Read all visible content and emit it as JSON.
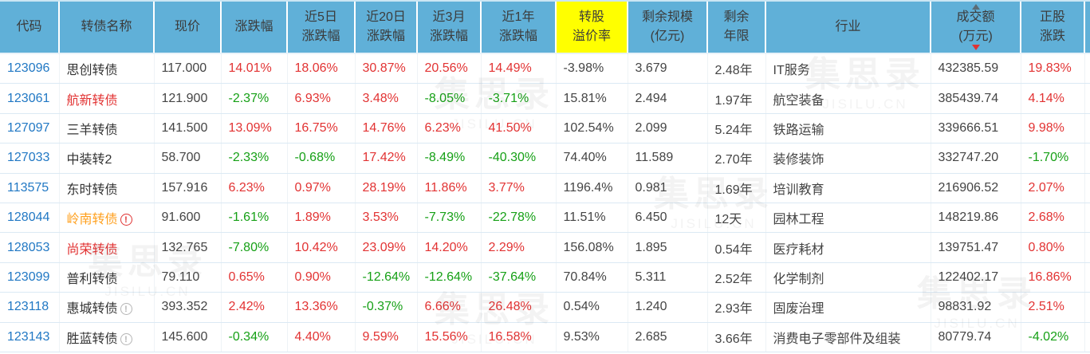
{
  "colors": {
    "header_bg": "#60b0d8",
    "highlight_yellow": "#ffff00",
    "up_red": "#e23333",
    "down_green": "#16a016",
    "code_blue": "#2178c4",
    "name_default": "#333333",
    "name_red": "#e23333",
    "name_orange": "#ffa01e"
  },
  "icons": {
    "warning": "!"
  },
  "watermark": {
    "text": "集思录",
    "subtext": "JISILU.CN"
  },
  "sort": {
    "column": "成交额(万元)",
    "direction": "desc"
  },
  "table": {
    "headers": [
      {
        "id": "code",
        "line1": "代码",
        "line2": ""
      },
      {
        "id": "name",
        "line1": "转债名称",
        "line2": ""
      },
      {
        "id": "price",
        "line1": "现价",
        "line2": ""
      },
      {
        "id": "change",
        "line1": "涨跌幅",
        "line2": ""
      },
      {
        "id": "change-5d",
        "line1": "近5日",
        "line2": "涨跌幅"
      },
      {
        "id": "change-20d",
        "line1": "近20日",
        "line2": "涨跌幅"
      },
      {
        "id": "change-3m",
        "line1": "近3月",
        "line2": "涨跌幅"
      },
      {
        "id": "change-1y",
        "line1": "近1年",
        "line2": "涨跌幅"
      },
      {
        "id": "premium",
        "line1": "转股",
        "line2": "溢价率",
        "highlight": true
      },
      {
        "id": "scale",
        "line1": "剩余规模",
        "line2": "(亿元)"
      },
      {
        "id": "years",
        "line1": "剩余",
        "line2": "年限"
      },
      {
        "id": "industry",
        "line1": "行业",
        "line2": ""
      },
      {
        "id": "turnover",
        "line1": "成交额",
        "line2": "(万元)",
        "sort": "desc"
      },
      {
        "id": "stock-change",
        "line1": "正股",
        "line2": "涨跌"
      }
    ],
    "rows": [
      {
        "code": "123096",
        "name": "思创转债",
        "name_color": "default",
        "warn": null,
        "values": [
          {
            "t": "117.000",
            "c": "flat"
          },
          {
            "t": "14.01%",
            "c": "up"
          },
          {
            "t": "18.06%",
            "c": "up"
          },
          {
            "t": "30.87%",
            "c": "up"
          },
          {
            "t": "20.56%",
            "c": "up"
          },
          {
            "t": "14.49%",
            "c": "up"
          },
          {
            "t": "-3.98%",
            "c": "flat"
          },
          {
            "t": "3.679",
            "c": "flat"
          },
          {
            "t": "2.48年",
            "c": "flat"
          },
          {
            "t": "IT服务",
            "c": "flat"
          },
          {
            "t": "432385.59",
            "c": "flat"
          },
          {
            "t": "19.83%",
            "c": "up"
          }
        ]
      },
      {
        "code": "123061",
        "name": "航新转债",
        "name_color": "red",
        "warn": null,
        "values": [
          {
            "t": "121.900",
            "c": "flat"
          },
          {
            "t": "-2.37%",
            "c": "down"
          },
          {
            "t": "6.93%",
            "c": "up"
          },
          {
            "t": "3.48%",
            "c": "up"
          },
          {
            "t": "-8.05%",
            "c": "down"
          },
          {
            "t": "-3.71%",
            "c": "down"
          },
          {
            "t": "15.81%",
            "c": "flat"
          },
          {
            "t": "2.494",
            "c": "flat"
          },
          {
            "t": "1.97年",
            "c": "flat"
          },
          {
            "t": "航空装备",
            "c": "flat"
          },
          {
            "t": "385439.74",
            "c": "flat"
          },
          {
            "t": "4.14%",
            "c": "up"
          }
        ]
      },
      {
        "code": "127097",
        "name": "三羊转债",
        "name_color": "default",
        "warn": null,
        "values": [
          {
            "t": "141.500",
            "c": "flat"
          },
          {
            "t": "13.09%",
            "c": "up"
          },
          {
            "t": "16.75%",
            "c": "up"
          },
          {
            "t": "14.76%",
            "c": "up"
          },
          {
            "t": "6.23%",
            "c": "up"
          },
          {
            "t": "41.50%",
            "c": "up"
          },
          {
            "t": "102.54%",
            "c": "flat"
          },
          {
            "t": "2.099",
            "c": "flat"
          },
          {
            "t": "5.24年",
            "c": "flat"
          },
          {
            "t": "铁路运输",
            "c": "flat"
          },
          {
            "t": "339666.51",
            "c": "flat"
          },
          {
            "t": "9.98%",
            "c": "up"
          }
        ]
      },
      {
        "code": "127033",
        "name": "中装转2",
        "name_color": "default",
        "warn": null,
        "values": [
          {
            "t": "58.700",
            "c": "flat"
          },
          {
            "t": "-2.33%",
            "c": "down"
          },
          {
            "t": "-0.68%",
            "c": "down"
          },
          {
            "t": "17.42%",
            "c": "up"
          },
          {
            "t": "-8.49%",
            "c": "down"
          },
          {
            "t": "-40.30%",
            "c": "down"
          },
          {
            "t": "74.40%",
            "c": "flat"
          },
          {
            "t": "11.589",
            "c": "flat"
          },
          {
            "t": "2.70年",
            "c": "flat"
          },
          {
            "t": "装修装饰",
            "c": "flat"
          },
          {
            "t": "332747.20",
            "c": "flat"
          },
          {
            "t": "-1.70%",
            "c": "down"
          }
        ]
      },
      {
        "code": "113575",
        "name": "东时转债",
        "name_color": "default",
        "warn": null,
        "values": [
          {
            "t": "157.916",
            "c": "flat"
          },
          {
            "t": "6.23%",
            "c": "up"
          },
          {
            "t": "0.97%",
            "c": "up"
          },
          {
            "t": "28.19%",
            "c": "up"
          },
          {
            "t": "11.86%",
            "c": "up"
          },
          {
            "t": "3.77%",
            "c": "up"
          },
          {
            "t": "1196.4%",
            "c": "flat"
          },
          {
            "t": "0.981",
            "c": "flat"
          },
          {
            "t": "1.69年",
            "c": "flat"
          },
          {
            "t": "培训教育",
            "c": "flat"
          },
          {
            "t": "216906.52",
            "c": "flat"
          },
          {
            "t": "2.07%",
            "c": "up"
          }
        ]
      },
      {
        "code": "128044",
        "name": "岭南转债",
        "name_color": "orange",
        "warn": "red",
        "values": [
          {
            "t": "91.600",
            "c": "flat"
          },
          {
            "t": "-1.61%",
            "c": "down"
          },
          {
            "t": "1.89%",
            "c": "up"
          },
          {
            "t": "3.53%",
            "c": "up"
          },
          {
            "t": "-7.73%",
            "c": "down"
          },
          {
            "t": "-22.78%",
            "c": "down"
          },
          {
            "t": "11.51%",
            "c": "flat"
          },
          {
            "t": "6.450",
            "c": "flat"
          },
          {
            "t": "12天",
            "c": "flat"
          },
          {
            "t": "园林工程",
            "c": "flat"
          },
          {
            "t": "148219.86",
            "c": "flat"
          },
          {
            "t": "2.68%",
            "c": "up"
          }
        ]
      },
      {
        "code": "128053",
        "name": "尚荣转债",
        "name_color": "red",
        "warn": null,
        "values": [
          {
            "t": "132.765",
            "c": "flat"
          },
          {
            "t": "-7.80%",
            "c": "down"
          },
          {
            "t": "10.42%",
            "c": "up"
          },
          {
            "t": "23.09%",
            "c": "up"
          },
          {
            "t": "14.20%",
            "c": "up"
          },
          {
            "t": "2.29%",
            "c": "up"
          },
          {
            "t": "156.08%",
            "c": "flat"
          },
          {
            "t": "1.895",
            "c": "flat"
          },
          {
            "t": "0.54年",
            "c": "flat"
          },
          {
            "t": "医疗耗材",
            "c": "flat"
          },
          {
            "t": "139751.47",
            "c": "flat"
          },
          {
            "t": "0.80%",
            "c": "up"
          }
        ]
      },
      {
        "code": "123099",
        "name": "普利转债",
        "name_color": "default",
        "warn": null,
        "values": [
          {
            "t": "79.110",
            "c": "flat"
          },
          {
            "t": "0.65%",
            "c": "up"
          },
          {
            "t": "0.90%",
            "c": "up"
          },
          {
            "t": "-12.64%",
            "c": "down"
          },
          {
            "t": "-12.64%",
            "c": "down"
          },
          {
            "t": "-37.64%",
            "c": "down"
          },
          {
            "t": "70.84%",
            "c": "flat"
          },
          {
            "t": "5.311",
            "c": "flat"
          },
          {
            "t": "2.52年",
            "c": "flat"
          },
          {
            "t": "化学制剂",
            "c": "flat"
          },
          {
            "t": "122402.17",
            "c": "flat"
          },
          {
            "t": "16.86%",
            "c": "up"
          }
        ]
      },
      {
        "code": "123118",
        "name": "惠城转债",
        "name_color": "default",
        "warn": "gray",
        "values": [
          {
            "t": "393.352",
            "c": "flat"
          },
          {
            "t": "2.42%",
            "c": "up"
          },
          {
            "t": "13.36%",
            "c": "up"
          },
          {
            "t": "-0.37%",
            "c": "down"
          },
          {
            "t": "6.66%",
            "c": "up"
          },
          {
            "t": "26.48%",
            "c": "up"
          },
          {
            "t": "0.54%",
            "c": "flat"
          },
          {
            "t": "1.240",
            "c": "flat"
          },
          {
            "t": "2.93年",
            "c": "flat"
          },
          {
            "t": "固废治理",
            "c": "flat"
          },
          {
            "t": "98831.92",
            "c": "flat"
          },
          {
            "t": "2.51%",
            "c": "up"
          }
        ]
      },
      {
        "code": "123143",
        "name": "胜蓝转债",
        "name_color": "default",
        "warn": "gray",
        "values": [
          {
            "t": "145.600",
            "c": "flat"
          },
          {
            "t": "-0.34%",
            "c": "down"
          },
          {
            "t": "4.40%",
            "c": "up"
          },
          {
            "t": "9.59%",
            "c": "up"
          },
          {
            "t": "15.56%",
            "c": "up"
          },
          {
            "t": "16.58%",
            "c": "up"
          },
          {
            "t": "9.53%",
            "c": "flat"
          },
          {
            "t": "2.685",
            "c": "flat"
          },
          {
            "t": "3.66年",
            "c": "flat"
          },
          {
            "t": "消费电子零部件及组装",
            "c": "flat"
          },
          {
            "t": "80779.74",
            "c": "flat"
          },
          {
            "t": "-4.02%",
            "c": "down"
          }
        ]
      }
    ]
  }
}
